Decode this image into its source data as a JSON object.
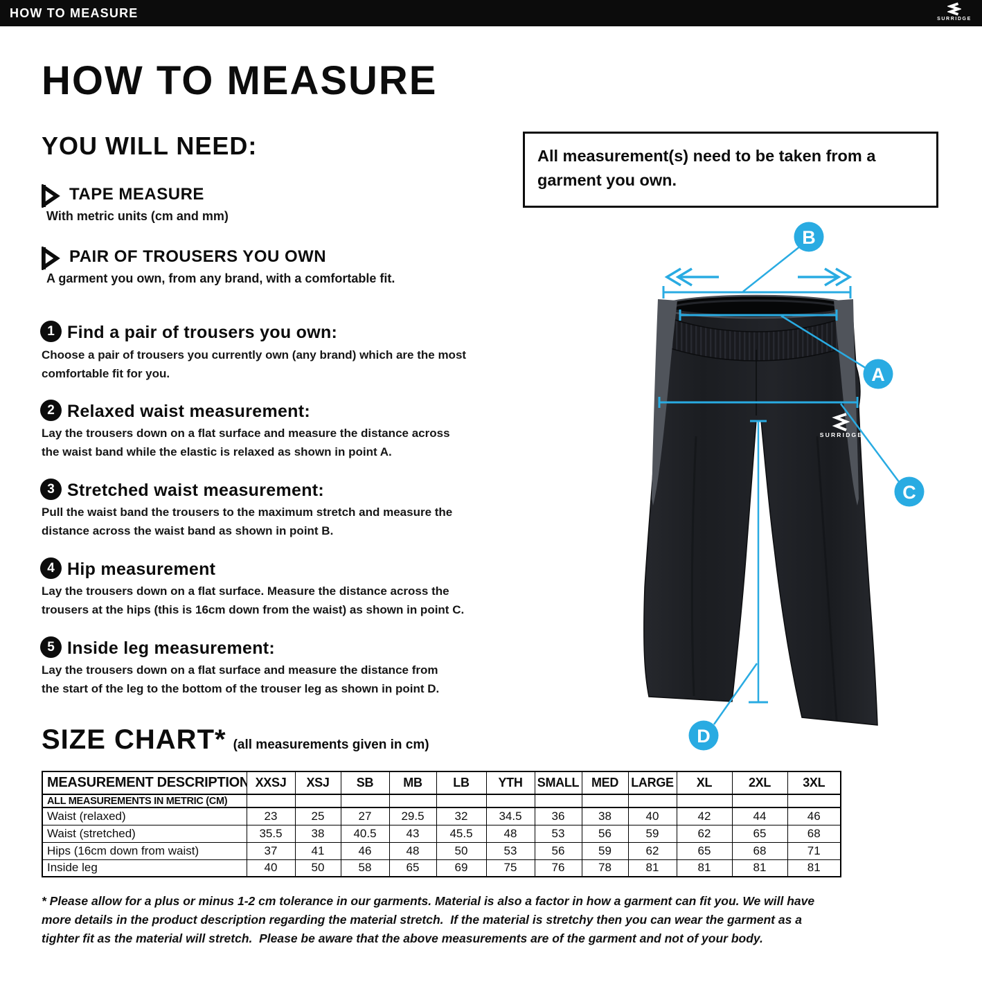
{
  "brand": {
    "name": "SURRIDGE"
  },
  "topbar": {
    "title": "HOW TO MEASURE"
  },
  "page": {
    "title": "HOW TO MEASURE",
    "you_will_need": {
      "heading": "YOU WILL NEED:",
      "items": [
        {
          "title": "TAPE MEASURE",
          "description": "With metric units (cm and mm)"
        },
        {
          "title": "PAIR OF TROUSERS YOU OWN",
          "description": "A garment you own, from any brand, with a comfortable fit."
        }
      ]
    },
    "steps": [
      {
        "number": "1",
        "title": "Find a pair of trousers you own:",
        "body": "Choose a pair of trousers you currently own (any brand) which are the most\ncomfortable fit for you."
      },
      {
        "number": "2",
        "title": "Relaxed waist measurement:",
        "body": "Lay the trousers down on a flat surface and measure the distance across\nthe waist band while the elastic is relaxed as shown in point A."
      },
      {
        "number": "3",
        "title": "Stretched waist measurement:",
        "body": "Pull the waist band the trousers to the maximum stretch and measure the\ndistance across the waist band as shown in point B."
      },
      {
        "number": "4",
        "title": "Hip measurement",
        "body": "Lay the trousers down on a flat surface. Measure the distance across the\ntrousers at the hips (this is 16cm down from the waist) as shown in point C."
      },
      {
        "number": "5",
        "title": "Inside leg measurement:",
        "body": "Lay the trousers down on a flat surface and measure the distance from\nthe start of the leg to the bottom of the trouser leg as shown in point D."
      }
    ],
    "note_box": "All measurement(s) need to be taken from a\ngarment you own.",
    "diagram": {
      "labels": [
        "A",
        "B",
        "C",
        "D"
      ],
      "accent_color": "#29abe2",
      "garment_brand": "SURRIDGE"
    },
    "size_chart": {
      "title": "SIZE CHART*",
      "subtitle": "(all measurements given in cm)",
      "columns": [
        "MEASUREMENT DESCRIPTION",
        "XXSJ",
        "XSJ",
        "SB",
        "MB",
        "LB",
        "YTH",
        "SMALL",
        "MED",
        "LARGE",
        "XL",
        "2XL",
        "3XL"
      ],
      "unit_row": "ALL MEASUREMENTS IN METRIC (CM)",
      "rows": [
        {
          "label": "Waist (relaxed)",
          "values": [
            "23",
            "25",
            "27",
            "29.5",
            "32",
            "34.5",
            "36",
            "38",
            "40",
            "42",
            "44",
            "46"
          ]
        },
        {
          "label": "Waist (stretched)",
          "values": [
            "35.5",
            "38",
            "40.5",
            "43",
            "45.5",
            "48",
            "53",
            "56",
            "59",
            "62",
            "65",
            "68"
          ]
        },
        {
          "label": "Hips (16cm down from waist)",
          "values": [
            "37",
            "41",
            "46",
            "48",
            "50",
            "53",
            "56",
            "59",
            "62",
            "65",
            "68",
            "71"
          ]
        },
        {
          "label": "Inside leg",
          "values": [
            "40",
            "50",
            "58",
            "65",
            "69",
            "75",
            "76",
            "78",
            "81",
            "81",
            "81",
            "81"
          ]
        }
      ]
    },
    "footnote": "* Please allow for a plus or minus 1-2 cm tolerance in our garments. Material is also a factor in how a garment can fit you. We will have\nmore details in the product description regarding the material stretch.  If the material is stretchy then you can wear the garment as a\ntighter fit as the material will stretch.  Please be aware that the above measurements are of the garment and not of your body."
  }
}
